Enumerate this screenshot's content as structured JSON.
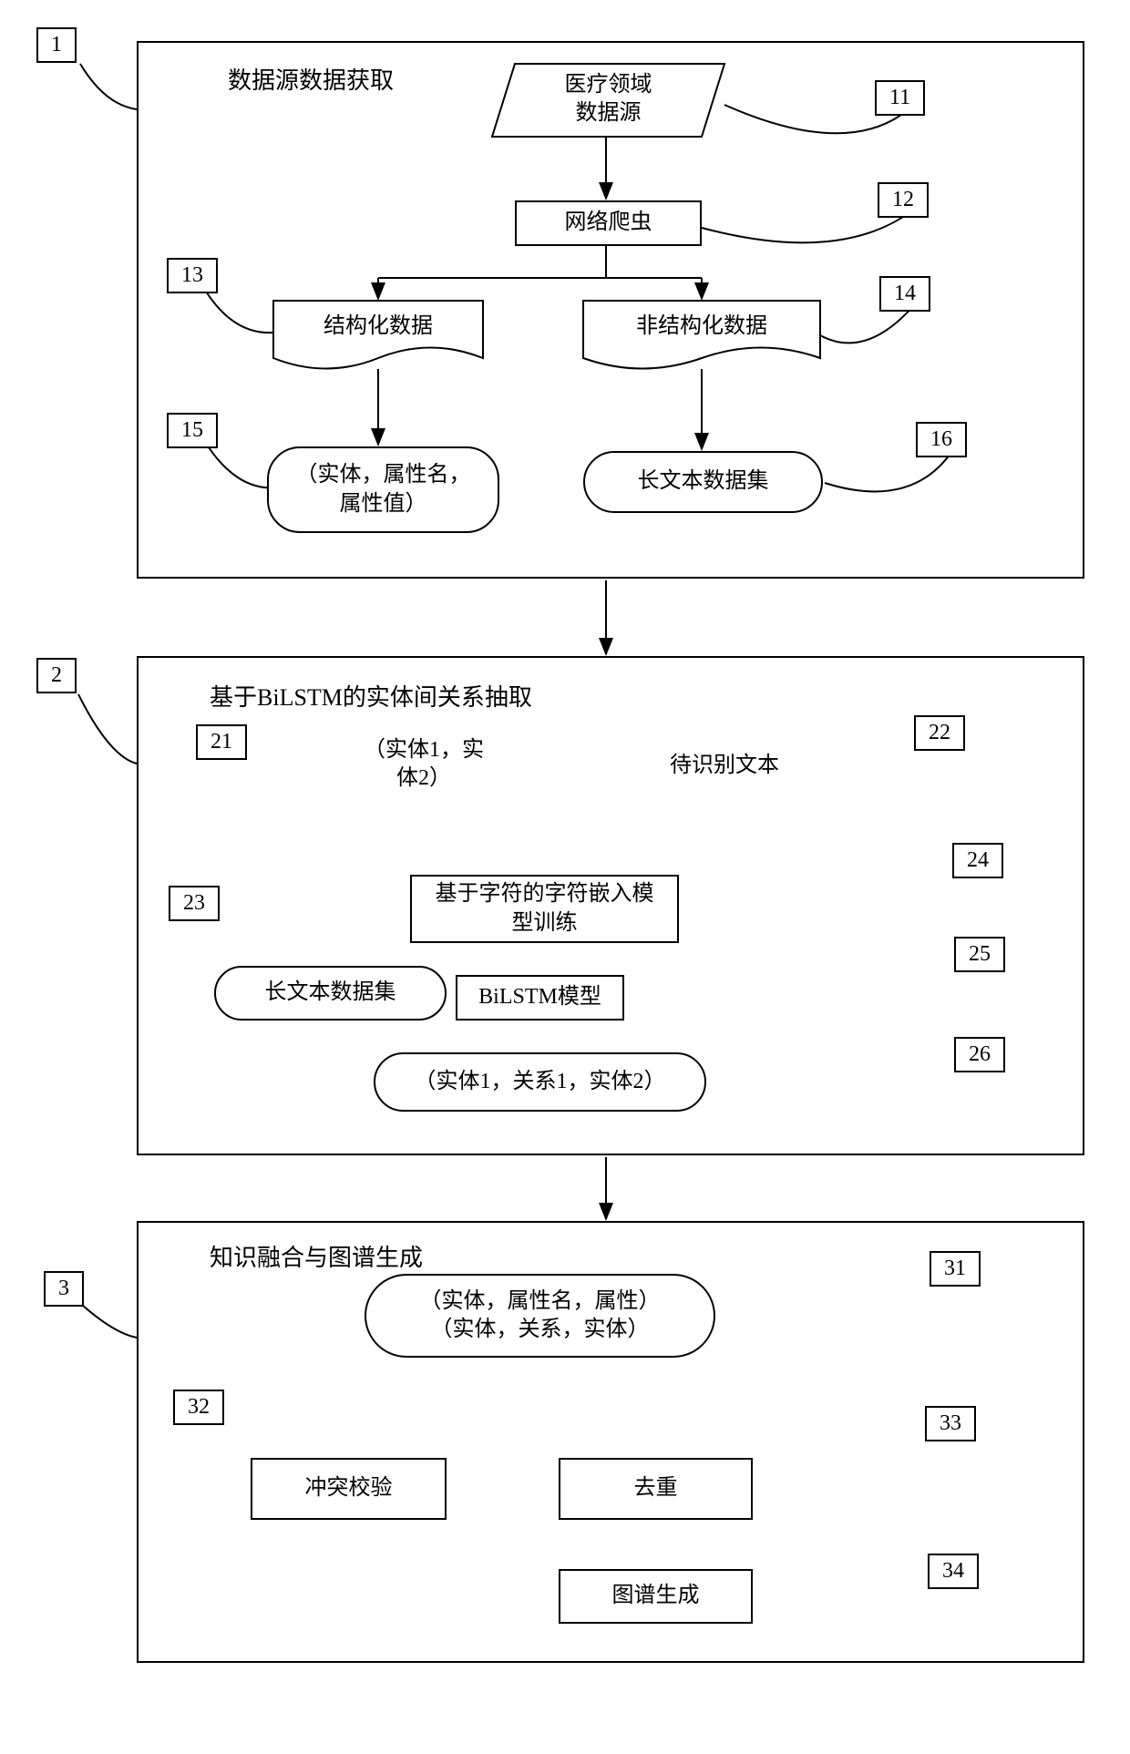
{
  "diagram": {
    "stroke_color": "#000000",
    "background_color": "#ffffff",
    "font_family": "SimSun",
    "base_fontsize": 24,
    "title_fontsize": 26,
    "line_width": 2,
    "arrow_size": 10
  },
  "sections": {
    "s1": {
      "num": "1",
      "title": "数据源数据获取"
    },
    "s2": {
      "num": "2",
      "title": "基于BiLSTM的实体间关系抽取"
    },
    "s3": {
      "num": "3",
      "title": "知识融合与图谱生成"
    }
  },
  "nodes": {
    "n11": {
      "num": "11",
      "label": "医疗领域\n数据源",
      "shape": "parallelogram"
    },
    "n12": {
      "num": "12",
      "label": "网络爬虫",
      "shape": "rect"
    },
    "n13": {
      "num": "13",
      "label": "结构化数据",
      "shape": "banner"
    },
    "n14": {
      "num": "14",
      "label": "非结构化数据",
      "shape": "banner"
    },
    "n15": {
      "num": "15",
      "label": "（实体，属性名，\n属性值）",
      "shape": "rounded"
    },
    "n16": {
      "num": "16",
      "label": "长文本数据集",
      "shape": "rounded"
    },
    "n21": {
      "num": "21",
      "label": "（实体1，实\n体2）",
      "shape": "parallelogram"
    },
    "n22": {
      "num": "22",
      "label": "待识别文本",
      "shape": "parallelogram"
    },
    "n23": {
      "num": "23",
      "label": "长文本数据集",
      "shape": "rounded"
    },
    "n24": {
      "num": "24",
      "label": "基于字符的字符嵌入模\n型训练",
      "shape": "rect"
    },
    "n25": {
      "num": "25",
      "label": "BiLSTM模型",
      "shape": "rect"
    },
    "n26": {
      "num": "26",
      "label": "（实体1，关系1，实体2）",
      "shape": "rounded"
    },
    "n31": {
      "num": "31",
      "label": "（实体，属性名，属性）\n（实体，关系，实体）",
      "shape": "rounded"
    },
    "n32": {
      "num": "32",
      "label": "冲突校验",
      "shape": "rect"
    },
    "n33": {
      "num": "33",
      "label": "去重",
      "shape": "rect"
    },
    "n34": {
      "num": "34",
      "label": "图谱生成",
      "shape": "rect"
    }
  }
}
